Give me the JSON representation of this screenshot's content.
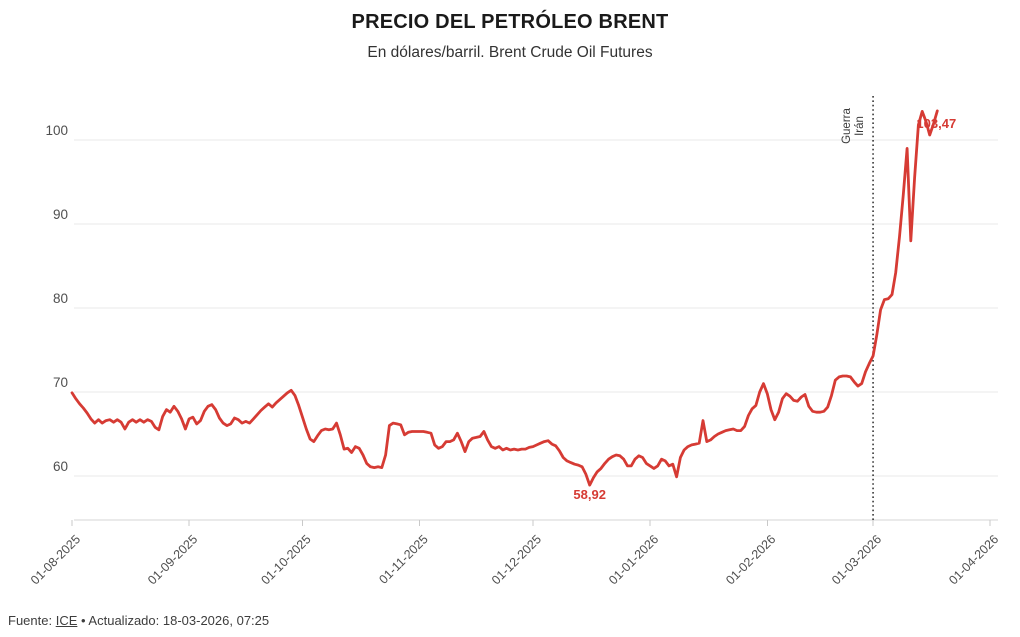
{
  "header": {
    "title": "PRECIO DEL PETRÓLEO BRENT",
    "subtitle": "En dólares/barril. Brent Crude Oil Futures"
  },
  "footer": {
    "prefix": "Fuente: ",
    "link": "ICE",
    "suffix": " • Actualizado: 18-03-2026, 07:25"
  },
  "colors": {
    "line": "#d63b34",
    "annotation_red": "#d63b34",
    "event_line": "#1a1a1a",
    "grid": "#e9e9e9",
    "axis": "#d6d6d6",
    "tick": "#c9c9c9",
    "axis_text": "#4f4f4f",
    "event_text": "#3a3a3a"
  },
  "chart_data": {
    "type": "line",
    "title": "PRECIO DEL PETRÓLEO BRENT",
    "subtitle": "En dólares/barril. Brent Crude Oil Futures",
    "unit": "dólares/barril",
    "grid": true,
    "legend": "none",
    "x_axis": {
      "tick_labels": [
        "01-08-2025",
        "01-09-2025",
        "01-10-2025",
        "01-11-2025",
        "01-12-2025",
        "01-01-2026",
        "01-02-2026",
        "01-03-2026",
        "01-04-2026"
      ],
      "tick_days": [
        0,
        31,
        61,
        92,
        122,
        153,
        184,
        212,
        243
      ],
      "start_label": "01-08-2025",
      "range_days": [
        0,
        243
      ]
    },
    "y_axis": {
      "ticks": [
        60,
        70,
        80,
        90,
        100
      ],
      "range": [
        54.5,
        105.5
      ]
    },
    "annotations": {
      "min": {
        "text": "58,92",
        "day": 137,
        "value": 58.92
      },
      "max": {
        "text": "103,47",
        "day": 224,
        "value": 103.47
      },
      "event": {
        "label_lines": [
          "Guerra",
          "Irán"
        ],
        "day": 212,
        "date_label": "01-03-2026"
      }
    },
    "series": [
      {
        "name": "Brent Crude Oil Futures",
        "color": "#d63b34",
        "points": [
          [
            0,
            69.9
          ],
          [
            1,
            69.2
          ],
          [
            2,
            68.6
          ],
          [
            3,
            68.1
          ],
          [
            4,
            67.5
          ],
          [
            5,
            66.8
          ],
          [
            6,
            66.3
          ],
          [
            7,
            66.7
          ],
          [
            8,
            66.3
          ],
          [
            9,
            66.6
          ],
          [
            10,
            66.7
          ],
          [
            11,
            66.4
          ],
          [
            12,
            66.7
          ],
          [
            13,
            66.4
          ],
          [
            14,
            65.6
          ],
          [
            15,
            66.4
          ],
          [
            16,
            66.7
          ],
          [
            17,
            66.4
          ],
          [
            18,
            66.7
          ],
          [
            19,
            66.4
          ],
          [
            20,
            66.7
          ],
          [
            21,
            66.5
          ],
          [
            22,
            65.8
          ],
          [
            23,
            65.5
          ],
          [
            24,
            67.1
          ],
          [
            25,
            67.9
          ],
          [
            26,
            67.6
          ],
          [
            27,
            68.3
          ],
          [
            28,
            67.7
          ],
          [
            29,
            66.8
          ],
          [
            30,
            65.6
          ],
          [
            31,
            66.8
          ],
          [
            32,
            67.0
          ],
          [
            33,
            66.2
          ],
          [
            34,
            66.6
          ],
          [
            35,
            67.7
          ],
          [
            36,
            68.3
          ],
          [
            37,
            68.5
          ],
          [
            38,
            67.9
          ],
          [
            39,
            66.9
          ],
          [
            40,
            66.3
          ],
          [
            41,
            66.0
          ],
          [
            42,
            66.2
          ],
          [
            43,
            66.9
          ],
          [
            44,
            66.7
          ],
          [
            45,
            66.3
          ],
          [
            46,
            66.5
          ],
          [
            47,
            66.3
          ],
          [
            48,
            66.8
          ],
          [
            49,
            67.3
          ],
          [
            50,
            67.8
          ],
          [
            51,
            68.2
          ],
          [
            52,
            68.6
          ],
          [
            53,
            68.2
          ],
          [
            54,
            68.7
          ],
          [
            55,
            69.1
          ],
          [
            56,
            69.5
          ],
          [
            57,
            69.9
          ],
          [
            58,
            70.2
          ],
          [
            59,
            69.6
          ],
          [
            60,
            68.4
          ],
          [
            61,
            67.0
          ],
          [
            62,
            65.6
          ],
          [
            63,
            64.4
          ],
          [
            64,
            64.1
          ],
          [
            65,
            64.8
          ],
          [
            66,
            65.4
          ],
          [
            67,
            65.6
          ],
          [
            68,
            65.5
          ],
          [
            69,
            65.6
          ],
          [
            70,
            66.3
          ],
          [
            71,
            64.9
          ],
          [
            72,
            63.2
          ],
          [
            73,
            63.3
          ],
          [
            74,
            62.8
          ],
          [
            75,
            63.5
          ],
          [
            76,
            63.3
          ],
          [
            77,
            62.5
          ],
          [
            78,
            61.5
          ],
          [
            79,
            61.1
          ],
          [
            80,
            61.0
          ],
          [
            81,
            61.1
          ],
          [
            82,
            61.0
          ],
          [
            83,
            62.5
          ],
          [
            84,
            66.0
          ],
          [
            85,
            66.3
          ],
          [
            86,
            66.2
          ],
          [
            87,
            66.1
          ],
          [
            88,
            64.9
          ],
          [
            89,
            65.2
          ],
          [
            90,
            65.3
          ],
          [
            91,
            65.3
          ],
          [
            92,
            65.3
          ],
          [
            93,
            65.3
          ],
          [
            94,
            65.2
          ],
          [
            95,
            65.1
          ],
          [
            96,
            63.7
          ],
          [
            97,
            63.3
          ],
          [
            98,
            63.5
          ],
          [
            99,
            64.1
          ],
          [
            100,
            64.1
          ],
          [
            101,
            64.3
          ],
          [
            102,
            65.1
          ],
          [
            103,
            64.1
          ],
          [
            104,
            62.9
          ],
          [
            105,
            64.1
          ],
          [
            106,
            64.5
          ],
          [
            107,
            64.6
          ],
          [
            108,
            64.7
          ],
          [
            109,
            65.3
          ],
          [
            110,
            64.3
          ],
          [
            111,
            63.5
          ],
          [
            112,
            63.3
          ],
          [
            113,
            63.5
          ],
          [
            114,
            63.1
          ],
          [
            115,
            63.3
          ],
          [
            116,
            63.1
          ],
          [
            117,
            63.2
          ],
          [
            118,
            63.1
          ],
          [
            119,
            63.2
          ],
          [
            120,
            63.2
          ],
          [
            121,
            63.4
          ],
          [
            122,
            63.5
          ],
          [
            123,
            63.7
          ],
          [
            124,
            63.9
          ],
          [
            125,
            64.1
          ],
          [
            126,
            64.2
          ],
          [
            127,
            63.8
          ],
          [
            128,
            63.6
          ],
          [
            129,
            63.0
          ],
          [
            130,
            62.2
          ],
          [
            131,
            61.8
          ],
          [
            132,
            61.6
          ],
          [
            133,
            61.4
          ],
          [
            134,
            61.3
          ],
          [
            135,
            61.1
          ],
          [
            136,
            60.2
          ],
          [
            137,
            58.92
          ],
          [
            138,
            59.8
          ],
          [
            139,
            60.5
          ],
          [
            140,
            60.9
          ],
          [
            141,
            61.5
          ],
          [
            142,
            62.0
          ],
          [
            143,
            62.3
          ],
          [
            144,
            62.5
          ],
          [
            145,
            62.4
          ],
          [
            146,
            62.0
          ],
          [
            147,
            61.2
          ],
          [
            148,
            61.2
          ],
          [
            149,
            62.0
          ],
          [
            150,
            62.4
          ],
          [
            151,
            62.2
          ],
          [
            152,
            61.5
          ],
          [
            153,
            61.2
          ],
          [
            154,
            60.9
          ],
          [
            155,
            61.2
          ],
          [
            156,
            62.0
          ],
          [
            157,
            61.8
          ],
          [
            158,
            61.2
          ],
          [
            159,
            61.4
          ],
          [
            160,
            59.9
          ],
          [
            161,
            62.2
          ],
          [
            162,
            63.1
          ],
          [
            163,
            63.5
          ],
          [
            164,
            63.7
          ],
          [
            165,
            63.8
          ],
          [
            166,
            63.9
          ],
          [
            167,
            66.6
          ],
          [
            168,
            64.1
          ],
          [
            169,
            64.3
          ],
          [
            170,
            64.7
          ],
          [
            171,
            65.0
          ],
          [
            172,
            65.2
          ],
          [
            173,
            65.4
          ],
          [
            174,
            65.5
          ],
          [
            175,
            65.6
          ],
          [
            176,
            65.4
          ],
          [
            177,
            65.4
          ],
          [
            178,
            65.9
          ],
          [
            179,
            67.2
          ],
          [
            180,
            68.0
          ],
          [
            181,
            68.4
          ],
          [
            182,
            70.0
          ],
          [
            183,
            71.0
          ],
          [
            184,
            69.8
          ],
          [
            185,
            67.9
          ],
          [
            186,
            66.7
          ],
          [
            187,
            67.6
          ],
          [
            188,
            69.2
          ],
          [
            189,
            69.8
          ],
          [
            190,
            69.5
          ],
          [
            191,
            69.0
          ],
          [
            192,
            68.9
          ],
          [
            193,
            69.4
          ],
          [
            194,
            69.7
          ],
          [
            195,
            68.3
          ],
          [
            196,
            67.7
          ],
          [
            197,
            67.6
          ],
          [
            198,
            67.6
          ],
          [
            199,
            67.7
          ],
          [
            200,
            68.2
          ],
          [
            201,
            69.6
          ],
          [
            202,
            71.4
          ],
          [
            203,
            71.8
          ],
          [
            204,
            71.9
          ],
          [
            205,
            71.9
          ],
          [
            206,
            71.8
          ],
          [
            207,
            71.2
          ],
          [
            208,
            70.7
          ],
          [
            209,
            71.0
          ],
          [
            210,
            72.4
          ],
          [
            211,
            73.4
          ],
          [
            212,
            74.3
          ],
          [
            213,
            76.8
          ],
          [
            214,
            79.8
          ],
          [
            215,
            81.0
          ],
          [
            216,
            81.1
          ],
          [
            217,
            81.6
          ],
          [
            218,
            84.2
          ],
          [
            219,
            88.5
          ],
          [
            220,
            93.5
          ],
          [
            221,
            99.0
          ],
          [
            222,
            88.0
          ],
          [
            223,
            95.5
          ],
          [
            224,
            101.8
          ],
          [
            225,
            103.4
          ],
          [
            226,
            102.2
          ],
          [
            227,
            100.6
          ],
          [
            228,
            101.9
          ],
          [
            229,
            103.47
          ]
        ]
      }
    ]
  }
}
